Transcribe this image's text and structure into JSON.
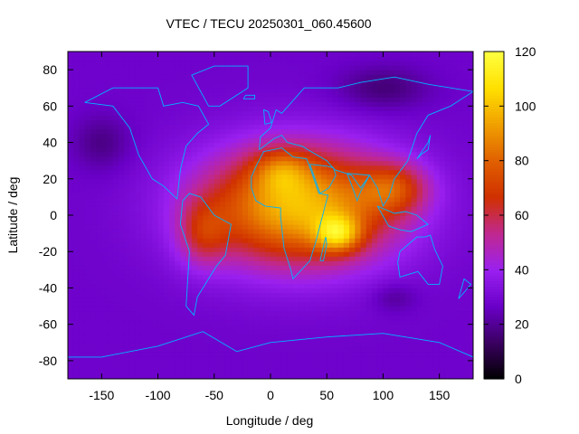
{
  "chart_data": {
    "type": "heatmap",
    "title": "VTEC / TECU 20250301_060.45600",
    "xlabel": "Longitude / deg",
    "ylabel": "Latitude / deg",
    "xlim": [
      -180,
      180
    ],
    "ylim": [
      -90,
      90
    ],
    "x_ticks": [
      -150,
      -100,
      -50,
      0,
      50,
      100,
      150
    ],
    "y_ticks": [
      -80,
      -60,
      -40,
      -20,
      0,
      20,
      40,
      60,
      80
    ],
    "colorbar": {
      "range": [
        0,
        120
      ],
      "ticks": [
        0,
        20,
        40,
        60,
        80,
        100,
        120
      ],
      "palette": [
        "#000000",
        "#3a0060",
        "#6a00c8",
        "#9a20f0",
        "#c02890",
        "#d03000",
        "#e06000",
        "#f0a000",
        "#ffe000",
        "#ffff40"
      ]
    },
    "background_vtec": 28,
    "anomalies": [
      {
        "lon": 25,
        "lat": 5,
        "vtec": 72,
        "extent_lon": 85,
        "extent_lat": 32
      },
      {
        "lon": 60,
        "lat": -10,
        "vtec": 40,
        "extent_lon": 20,
        "extent_lat": 10
      },
      {
        "lon": 10,
        "lat": 25,
        "vtec": 22,
        "extent_lon": 25,
        "extent_lat": 12
      },
      {
        "lon": 110,
        "lat": 15,
        "vtec": 30,
        "extent_lon": 30,
        "extent_lat": 14
      },
      {
        "lon": -60,
        "lat": -10,
        "vtec": 22,
        "extent_lon": 22,
        "extent_lat": 18
      },
      {
        "lon": 100,
        "lat": 70,
        "vtec": -12,
        "extent_lon": 40,
        "extent_lat": 12
      },
      {
        "lon": -150,
        "lat": 40,
        "vtec": -10,
        "extent_lon": 25,
        "extent_lat": 15
      },
      {
        "lon": 110,
        "lat": -45,
        "vtec": -8,
        "extent_lon": 20,
        "extent_lat": 8
      }
    ],
    "coastlines": [
      {
        "name": "Africa",
        "points": [
          [
            -17,
            21
          ],
          [
            -12,
            28
          ],
          [
            -6,
            35
          ],
          [
            10,
            37
          ],
          [
            20,
            32
          ],
          [
            32,
            31
          ],
          [
            34,
            28
          ],
          [
            43,
            12
          ],
          [
            51,
            11
          ],
          [
            40,
            -15
          ],
          [
            35,
            -25
          ],
          [
            20,
            -35
          ],
          [
            18,
            -30
          ],
          [
            12,
            -18
          ],
          [
            9,
            -1
          ],
          [
            9,
            4
          ],
          [
            -5,
            5
          ],
          [
            -13,
            8
          ],
          [
            -17,
            15
          ],
          [
            -17,
            21
          ]
        ]
      },
      {
        "name": "South America",
        "points": [
          [
            -78,
            8
          ],
          [
            -72,
            12
          ],
          [
            -62,
            10
          ],
          [
            -50,
            0
          ],
          [
            -35,
            -5
          ],
          [
            -40,
            -22
          ],
          [
            -48,
            -28
          ],
          [
            -58,
            -38
          ],
          [
            -65,
            -45
          ],
          [
            -68,
            -55
          ],
          [
            -75,
            -50
          ],
          [
            -72,
            -20
          ],
          [
            -80,
            -5
          ],
          [
            -78,
            8
          ]
        ]
      },
      {
        "name": "North America",
        "points": [
          [
            -165,
            62
          ],
          [
            -140,
            60
          ],
          [
            -125,
            48
          ],
          [
            -117,
            33
          ],
          [
            -105,
            20
          ],
          [
            -95,
            16
          ],
          [
            -83,
            9
          ],
          [
            -80,
            25
          ],
          [
            -75,
            38
          ],
          [
            -65,
            45
          ],
          [
            -55,
            50
          ],
          [
            -64,
            60
          ],
          [
            -78,
            62
          ],
          [
            -95,
            60
          ],
          [
            -100,
            70
          ],
          [
            -140,
            70
          ],
          [
            -165,
            62
          ]
        ]
      },
      {
        "name": "Greenland",
        "points": [
          [
            -55,
            60
          ],
          [
            -45,
            60
          ],
          [
            -20,
            70
          ],
          [
            -20,
            82
          ],
          [
            -50,
            82
          ],
          [
            -70,
            77
          ],
          [
            -55,
            60
          ]
        ]
      },
      {
        "name": "Eurasia",
        "points": [
          [
            -10,
            36
          ],
          [
            -9,
            43
          ],
          [
            0,
            48
          ],
          [
            5,
            58
          ],
          [
            10,
            56
          ],
          [
            30,
            70
          ],
          [
            60,
            70
          ],
          [
            80,
            73
          ],
          [
            110,
            76
          ],
          [
            140,
            72
          ],
          [
            180,
            68
          ],
          [
            160,
            60
          ],
          [
            140,
            55
          ],
          [
            130,
            45
          ],
          [
            122,
            30
          ],
          [
            110,
            20
          ],
          [
            105,
            10
          ],
          [
            100,
            5
          ],
          [
            95,
            15
          ],
          [
            88,
            22
          ],
          [
            80,
            15
          ],
          [
            72,
            22
          ],
          [
            57,
            25
          ],
          [
            50,
            30
          ],
          [
            36,
            35
          ],
          [
            28,
            38
          ],
          [
            15,
            40
          ],
          [
            10,
            44
          ],
          [
            3,
            42
          ],
          [
            -10,
            36
          ]
        ]
      },
      {
        "name": "Arabia",
        "points": [
          [
            35,
            28
          ],
          [
            44,
            12
          ],
          [
            52,
            15
          ],
          [
            58,
            22
          ],
          [
            56,
            26
          ],
          [
            50,
            27
          ],
          [
            35,
            28
          ]
        ]
      },
      {
        "name": "India",
        "points": [
          [
            68,
            23
          ],
          [
            73,
            15
          ],
          [
            77,
            8
          ],
          [
            80,
            13
          ],
          [
            88,
            22
          ],
          [
            68,
            23
          ]
        ]
      },
      {
        "name": "Australia",
        "points": [
          [
            115,
            -20
          ],
          [
            130,
            -12
          ],
          [
            137,
            -12
          ],
          [
            142,
            -11
          ],
          [
            146,
            -19
          ],
          [
            153,
            -28
          ],
          [
            150,
            -38
          ],
          [
            140,
            -38
          ],
          [
            131,
            -31
          ],
          [
            115,
            -34
          ],
          [
            113,
            -26
          ],
          [
            115,
            -20
          ]
        ]
      },
      {
        "name": "Antarctica",
        "points": [
          [
            -180,
            -78
          ],
          [
            -150,
            -78
          ],
          [
            -100,
            -72
          ],
          [
            -60,
            -64
          ],
          [
            -30,
            -75
          ],
          [
            0,
            -70
          ],
          [
            50,
            -67
          ],
          [
            100,
            -65
          ],
          [
            150,
            -70
          ],
          [
            180,
            -78
          ]
        ]
      },
      {
        "name": "Madagascar",
        "points": [
          [
            44,
            -25
          ],
          [
            49,
            -12
          ],
          [
            50,
            -16
          ],
          [
            47,
            -25
          ],
          [
            44,
            -25
          ]
        ]
      },
      {
        "name": "Japan",
        "points": [
          [
            130,
            31
          ],
          [
            135,
            34
          ],
          [
            140,
            36
          ],
          [
            142,
            44
          ],
          [
            140,
            40
          ],
          [
            130,
            31
          ]
        ]
      },
      {
        "name": "Indonesia",
        "points": [
          [
            95,
            5
          ],
          [
            105,
            -6
          ],
          [
            115,
            -8
          ],
          [
            125,
            -9
          ],
          [
            140,
            -5
          ],
          [
            130,
            0
          ],
          [
            120,
            2
          ],
          [
            110,
            1
          ],
          [
            95,
            5
          ]
        ]
      },
      {
        "name": "Great Britain",
        "points": [
          [
            -5,
            50
          ],
          [
            1,
            51
          ],
          [
            -2,
            57
          ],
          [
            -6,
            58
          ],
          [
            -5,
            50
          ]
        ]
      },
      {
        "name": "Iceland",
        "points": [
          [
            -24,
            64
          ],
          [
            -14,
            64
          ],
          [
            -14,
            66
          ],
          [
            -22,
            66
          ],
          [
            -24,
            64
          ]
        ]
      },
      {
        "name": "New Zealand",
        "points": [
          [
            167,
            -46
          ],
          [
            174,
            -41
          ],
          [
            178,
            -38
          ],
          [
            172,
            -35
          ],
          [
            167,
            -46
          ]
        ]
      }
    ]
  }
}
